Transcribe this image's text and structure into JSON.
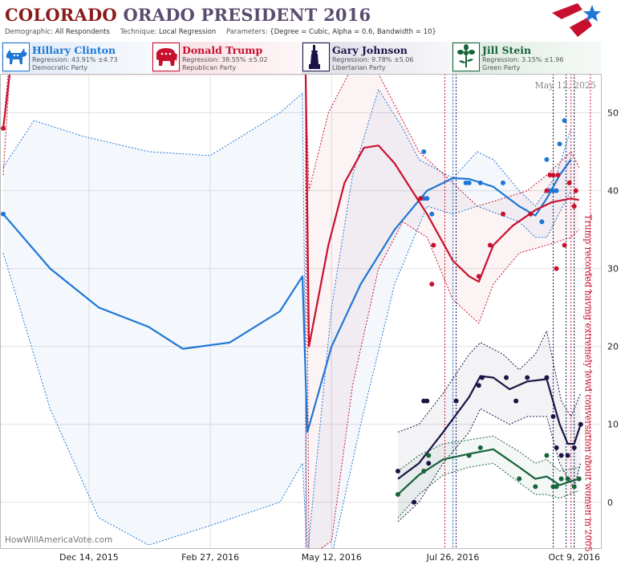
{
  "header": {
    "title_part1": "COLORADO",
    "title_part2": "ORADO PRESIDENT 2016",
    "demographic_label": "Demographic:",
    "demographic_value": "All Respondents",
    "technique_label": "Technique:",
    "technique_value": "Local Regression",
    "parameters_label": "Parameters:",
    "parameters_value": "{Degree = Cubic, Alpha = 0.6, Bandwidth = 10}"
  },
  "candidates": [
    {
      "name": "Hillary Clinton",
      "regression": "Regression: 43.91% ±4.73",
      "party": "Democratic Party",
      "color": "#1f77d4",
      "icon": "donkey-icon"
    },
    {
      "name": "Donald Trump",
      "regression": "Regression: 38.55% ±5.02",
      "party": "Republican Party",
      "color": "#c8102e",
      "icon": "elephant-icon"
    },
    {
      "name": "Gary Johnson",
      "regression": "Regression: 9.78% ±5.06",
      "party": "Libertarian Party",
      "color": "#1a1446",
      "icon": "statue-of-liberty-icon"
    },
    {
      "name": "Jill Stein",
      "regression": "Regression: 3.15% ±1.96",
      "party": "Green Party",
      "color": "#17633a",
      "icon": "flower-icon"
    }
  ],
  "chart_data": {
    "type": "line",
    "date_stamp": "May 12, 2025",
    "watermark": "HowWillAmericaVote.com",
    "annotation": "Trump recorded having extremely lewd conversation about women in 2005",
    "annotation_date": "2016-10-07",
    "x_range": [
      "2015-10-20",
      "2016-10-26"
    ],
    "ylim": [
      -6,
      55
    ],
    "y_ticks": [
      0,
      10,
      20,
      30,
      40,
      50
    ],
    "x_ticks": [
      {
        "label": "Dec 14, 2015",
        "date": "2015-12-14"
      },
      {
        "label": "Feb 27, 2016",
        "date": "2016-02-27"
      },
      {
        "label": "May 12, 2016",
        "date": "2016-05-12"
      },
      {
        "label": "Jul 26, 2016",
        "date": "2016-07-26"
      },
      {
        "label": "Oct 9, 2016",
        "date": "2016-10-09"
      }
    ],
    "grid": true,
    "event_lines": [
      {
        "date": "2016-04-26",
        "color": "#c8102e"
      },
      {
        "date": "2016-07-21",
        "color": "#c8102e"
      },
      {
        "date": "2016-07-26",
        "color": "#1f77d4"
      },
      {
        "date": "2016-07-28",
        "color": "#1a1446"
      },
      {
        "date": "2016-09-26",
        "color": "#1a1446"
      },
      {
        "date": "2016-10-04",
        "color": "#1a1446"
      },
      {
        "date": "2016-10-07",
        "color": "#c8102e"
      },
      {
        "date": "2016-10-09",
        "color": "#1a1446"
      },
      {
        "date": "2016-10-19",
        "color": "#c8102e"
      }
    ],
    "series": [
      {
        "name": "Hillary Clinton",
        "color": "#1f77d4",
        "points": [
          [
            "2015-10-22",
            37
          ],
          [
            "2016-07-08",
            45
          ],
          [
            "2016-07-08",
            39
          ],
          [
            "2016-07-10",
            39
          ],
          [
            "2016-07-13",
            37
          ],
          [
            "2016-08-03",
            41
          ],
          [
            "2016-08-05",
            41
          ],
          [
            "2016-08-12",
            41
          ],
          [
            "2016-08-26",
            41
          ],
          [
            "2016-09-12",
            37
          ],
          [
            "2016-09-19",
            36
          ],
          [
            "2016-09-22",
            44
          ],
          [
            "2016-09-24",
            40
          ],
          [
            "2016-09-26",
            40
          ],
          [
            "2016-09-28",
            40
          ],
          [
            "2016-09-30",
            46
          ],
          [
            "2016-10-03",
            49
          ]
        ],
        "line": [
          [
            "2015-10-22",
            37
          ],
          [
            "2015-11-20",
            30
          ],
          [
            "2015-12-20",
            25
          ],
          [
            "2016-01-20",
            22.5
          ],
          [
            "2016-02-10",
            19.7
          ],
          [
            "2016-03-10",
            20.5
          ],
          [
            "2016-04-10",
            24.5
          ],
          [
            "2016-04-24",
            29
          ],
          [
            "2016-04-27",
            9
          ],
          [
            "2016-05-12",
            20
          ],
          [
            "2016-05-30",
            28
          ],
          [
            "2016-06-20",
            35
          ],
          [
            "2016-07-10",
            40
          ],
          [
            "2016-07-26",
            41.6
          ],
          [
            "2016-08-05",
            41.5
          ],
          [
            "2016-08-20",
            40.5
          ],
          [
            "2016-09-05",
            38
          ],
          [
            "2016-09-15",
            36.8
          ],
          [
            "2016-09-22",
            39
          ],
          [
            "2016-09-30",
            42
          ],
          [
            "2016-10-07",
            44
          ]
        ],
        "upper": [
          [
            "2015-10-22",
            43
          ],
          [
            "2015-11-10",
            49
          ],
          [
            "2015-12-10",
            47
          ],
          [
            "2016-01-20",
            45
          ],
          [
            "2016-02-27",
            44.5
          ],
          [
            "2016-04-10",
            50
          ],
          [
            "2016-04-24",
            52.5
          ],
          [
            "2016-04-27",
            -7
          ],
          [
            "2016-05-12",
            25
          ],
          [
            "2016-05-25",
            42
          ],
          [
            "2016-06-10",
            53
          ],
          [
            "2016-06-25",
            48
          ],
          [
            "2016-07-05",
            44
          ],
          [
            "2016-07-26",
            41.6
          ],
          [
            "2016-08-10",
            45
          ],
          [
            "2016-08-20",
            44
          ],
          [
            "2016-09-05",
            40
          ],
          [
            "2016-09-15",
            38
          ],
          [
            "2016-09-28",
            42
          ],
          [
            "2016-10-07",
            48
          ]
        ],
        "lower": [
          [
            "2015-10-22",
            32
          ],
          [
            "2015-11-20",
            12
          ],
          [
            "2015-12-20",
            -2
          ],
          [
            "2016-01-20",
            -5.5
          ],
          [
            "2016-02-27",
            -3
          ],
          [
            "2016-04-10",
            0
          ],
          [
            "2016-04-24",
            5
          ],
          [
            "2016-04-27",
            -7
          ],
          [
            "2016-05-12",
            -7
          ],
          [
            "2016-05-30",
            10
          ],
          [
            "2016-06-20",
            28
          ],
          [
            "2016-07-10",
            38
          ],
          [
            "2016-07-26",
            37
          ],
          [
            "2016-08-10",
            38
          ],
          [
            "2016-09-05",
            36
          ],
          [
            "2016-09-15",
            34
          ],
          [
            "2016-09-22",
            34
          ],
          [
            "2016-10-07",
            40
          ]
        ]
      },
      {
        "name": "Donald Trump",
        "color": "#c8102e",
        "points": [
          [
            "2015-10-22",
            48
          ],
          [
            "2016-07-06",
            39
          ],
          [
            "2016-07-13",
            28
          ],
          [
            "2016-07-14",
            33
          ],
          [
            "2016-08-11",
            29
          ],
          [
            "2016-08-18",
            33
          ],
          [
            "2016-08-26",
            37
          ],
          [
            "2016-09-12",
            37
          ],
          [
            "2016-09-22",
            40
          ],
          [
            "2016-09-24",
            42
          ],
          [
            "2016-09-26",
            42
          ],
          [
            "2016-09-28",
            30
          ],
          [
            "2016-09-29",
            42
          ],
          [
            "2016-10-03",
            33
          ],
          [
            "2016-10-06",
            41
          ],
          [
            "2016-10-09",
            38
          ],
          [
            "2016-10-10",
            40
          ]
        ],
        "line": [
          [
            "2015-10-22",
            48
          ],
          [
            "2015-10-26",
            55
          ],
          [
            "2016-04-26",
            55
          ],
          [
            "2016-04-28",
            20
          ],
          [
            "2016-05-10",
            33
          ],
          [
            "2016-05-20",
            41
          ],
          [
            "2016-06-01",
            45.5
          ],
          [
            "2016-06-10",
            45.8
          ],
          [
            "2016-06-20",
            43.5
          ],
          [
            "2016-07-10",
            37
          ],
          [
            "2016-07-26",
            31
          ],
          [
            "2016-08-05",
            29
          ],
          [
            "2016-08-11",
            28.3
          ],
          [
            "2016-08-20",
            33
          ],
          [
            "2016-09-01",
            35.5
          ],
          [
            "2016-09-15",
            37.5
          ],
          [
            "2016-09-25",
            38.5
          ],
          [
            "2016-10-07",
            39
          ],
          [
            "2016-10-12",
            38.8
          ]
        ],
        "upper": [
          [
            "2015-10-22",
            42
          ],
          [
            "2015-10-26",
            55
          ],
          [
            "2016-04-26",
            55
          ],
          [
            "2016-04-28",
            40
          ],
          [
            "2016-05-10",
            50
          ],
          [
            "2016-05-25",
            56
          ],
          [
            "2016-06-10",
            55
          ],
          [
            "2016-06-25",
            49
          ],
          [
            "2016-07-05",
            45
          ],
          [
            "2016-07-26",
            41
          ],
          [
            "2016-08-10",
            38
          ],
          [
            "2016-08-26",
            39
          ],
          [
            "2016-09-10",
            40
          ],
          [
            "2016-09-22",
            42
          ],
          [
            "2016-10-07",
            45
          ],
          [
            "2016-10-12",
            43
          ]
        ],
        "lower": [
          [
            "2015-10-22",
            48
          ],
          [
            "2015-10-25",
            55
          ],
          [
            "2016-04-26",
            55
          ],
          [
            "2016-04-28",
            -7
          ],
          [
            "2016-05-12",
            -5
          ],
          [
            "2016-05-25",
            15
          ],
          [
            "2016-06-10",
            30
          ],
          [
            "2016-06-25",
            36
          ],
          [
            "2016-07-10",
            34
          ],
          [
            "2016-07-26",
            26
          ],
          [
            "2016-08-11",
            23
          ],
          [
            "2016-08-20",
            28
          ],
          [
            "2016-09-05",
            32
          ],
          [
            "2016-09-22",
            33
          ],
          [
            "2016-10-07",
            34
          ],
          [
            "2016-10-12",
            35
          ]
        ]
      },
      {
        "name": "Gary Johnson",
        "color": "#1a1446",
        "points": [
          [
            "2016-06-22",
            4
          ],
          [
            "2016-07-02",
            0
          ],
          [
            "2016-07-08",
            13
          ],
          [
            "2016-07-10",
            13
          ],
          [
            "2016-07-11",
            5
          ],
          [
            "2016-07-28",
            13
          ],
          [
            "2016-08-11",
            15
          ],
          [
            "2016-08-13",
            16
          ],
          [
            "2016-08-28",
            16
          ],
          [
            "2016-09-03",
            13
          ],
          [
            "2016-09-10",
            16
          ],
          [
            "2016-09-22",
            16
          ],
          [
            "2016-09-26",
            11
          ],
          [
            "2016-09-28",
            7
          ],
          [
            "2016-10-01",
            6
          ],
          [
            "2016-10-05",
            6
          ],
          [
            "2016-10-09",
            7
          ],
          [
            "2016-10-13",
            10
          ]
        ],
        "line": [
          [
            "2016-06-22",
            3
          ],
          [
            "2016-07-05",
            5
          ],
          [
            "2016-07-20",
            9
          ],
          [
            "2016-08-05",
            13.5
          ],
          [
            "2016-08-12",
            16.2
          ],
          [
            "2016-08-20",
            16
          ],
          [
            "2016-08-30",
            14.5
          ],
          [
            "2016-09-10",
            15.5
          ],
          [
            "2016-09-22",
            15.8
          ],
          [
            "2016-09-30",
            10
          ],
          [
            "2016-10-05",
            7.5
          ],
          [
            "2016-10-09",
            7.5
          ],
          [
            "2016-10-13",
            10
          ]
        ],
        "upper": [
          [
            "2016-06-22",
            9
          ],
          [
            "2016-07-05",
            10
          ],
          [
            "2016-07-20",
            14
          ],
          [
            "2016-08-05",
            19
          ],
          [
            "2016-08-12",
            20.5
          ],
          [
            "2016-08-26",
            19
          ],
          [
            "2016-09-05",
            17
          ],
          [
            "2016-09-15",
            19
          ],
          [
            "2016-09-22",
            22
          ],
          [
            "2016-10-01",
            13
          ],
          [
            "2016-10-07",
            11
          ],
          [
            "2016-10-13",
            14
          ]
        ],
        "lower": [
          [
            "2016-06-22",
            -2.5
          ],
          [
            "2016-07-05",
            0
          ],
          [
            "2016-07-20",
            5
          ],
          [
            "2016-08-05",
            9
          ],
          [
            "2016-08-12",
            12
          ],
          [
            "2016-08-30",
            10
          ],
          [
            "2016-09-10",
            11
          ],
          [
            "2016-09-22",
            11
          ],
          [
            "2016-09-30",
            5
          ],
          [
            "2016-10-05",
            3
          ],
          [
            "2016-10-09",
            2
          ],
          [
            "2016-10-13",
            5
          ]
        ]
      },
      {
        "name": "Jill Stein",
        "color": "#17633a",
        "points": [
          [
            "2016-06-22",
            1
          ],
          [
            "2016-07-08",
            4
          ],
          [
            "2016-07-11",
            6
          ],
          [
            "2016-08-05",
            6
          ],
          [
            "2016-08-12",
            7
          ],
          [
            "2016-09-05",
            3
          ],
          [
            "2016-09-15",
            2
          ],
          [
            "2016-09-22",
            6
          ],
          [
            "2016-09-26",
            2
          ],
          [
            "2016-09-28",
            2
          ],
          [
            "2016-10-01",
            3
          ],
          [
            "2016-10-05",
            3
          ],
          [
            "2016-10-09",
            2
          ],
          [
            "2016-10-12",
            3
          ]
        ],
        "line": [
          [
            "2016-06-22",
            1
          ],
          [
            "2016-07-05",
            3.5
          ],
          [
            "2016-07-20",
            5.5
          ],
          [
            "2016-08-05",
            6.2
          ],
          [
            "2016-08-20",
            6.8
          ],
          [
            "2016-09-05",
            4.5
          ],
          [
            "2016-09-15",
            3
          ],
          [
            "2016-09-22",
            3.3
          ],
          [
            "2016-09-30",
            2.2
          ],
          [
            "2016-10-07",
            2.7
          ],
          [
            "2016-10-12",
            3
          ]
        ],
        "upper": [
          [
            "2016-06-22",
            4
          ],
          [
            "2016-07-05",
            6
          ],
          [
            "2016-07-20",
            7.5
          ],
          [
            "2016-08-05",
            8
          ],
          [
            "2016-08-20",
            8.5
          ],
          [
            "2016-09-05",
            6.5
          ],
          [
            "2016-09-15",
            5
          ],
          [
            "2016-09-22",
            5.5
          ],
          [
            "2016-09-30",
            4
          ],
          [
            "2016-10-12",
            4.5
          ]
        ],
        "lower": [
          [
            "2016-06-22",
            -2
          ],
          [
            "2016-07-05",
            1
          ],
          [
            "2016-07-20",
            3.5
          ],
          [
            "2016-08-05",
            4.5
          ],
          [
            "2016-08-20",
            5
          ],
          [
            "2016-09-05",
            2.5
          ],
          [
            "2016-09-15",
            1
          ],
          [
            "2016-09-22",
            1
          ],
          [
            "2016-09-30",
            0.5
          ],
          [
            "2016-10-12",
            1.5
          ]
        ]
      }
    ]
  }
}
